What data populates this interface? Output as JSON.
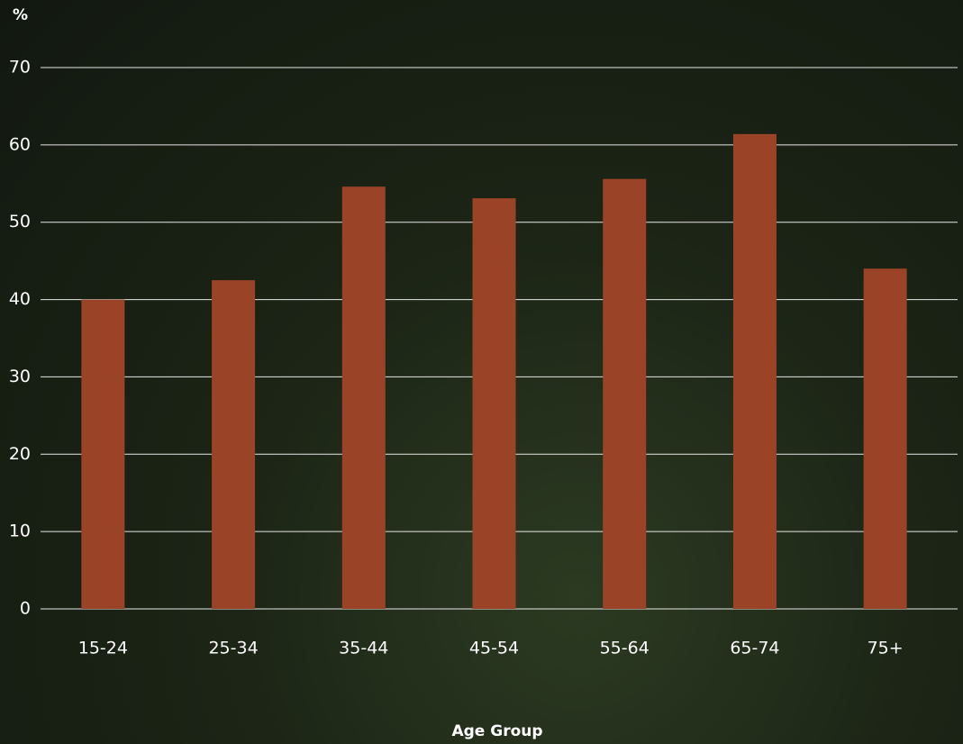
{
  "chart_data": {
    "type": "bar",
    "y_label": "%",
    "x_label": "Age Group",
    "categories": [
      "15-24",
      "25-34",
      "35-44",
      "45-54",
      "55-64",
      "65-74",
      "75+"
    ],
    "values": [
      40,
      42.5,
      54.6,
      53.1,
      55.6,
      61.4,
      44
    ],
    "color": "#9a4327",
    "ylim": [
      0,
      70
    ],
    "yticks": [
      0,
      10,
      20,
      30,
      40,
      50,
      60,
      70
    ],
    "grid": true
  }
}
